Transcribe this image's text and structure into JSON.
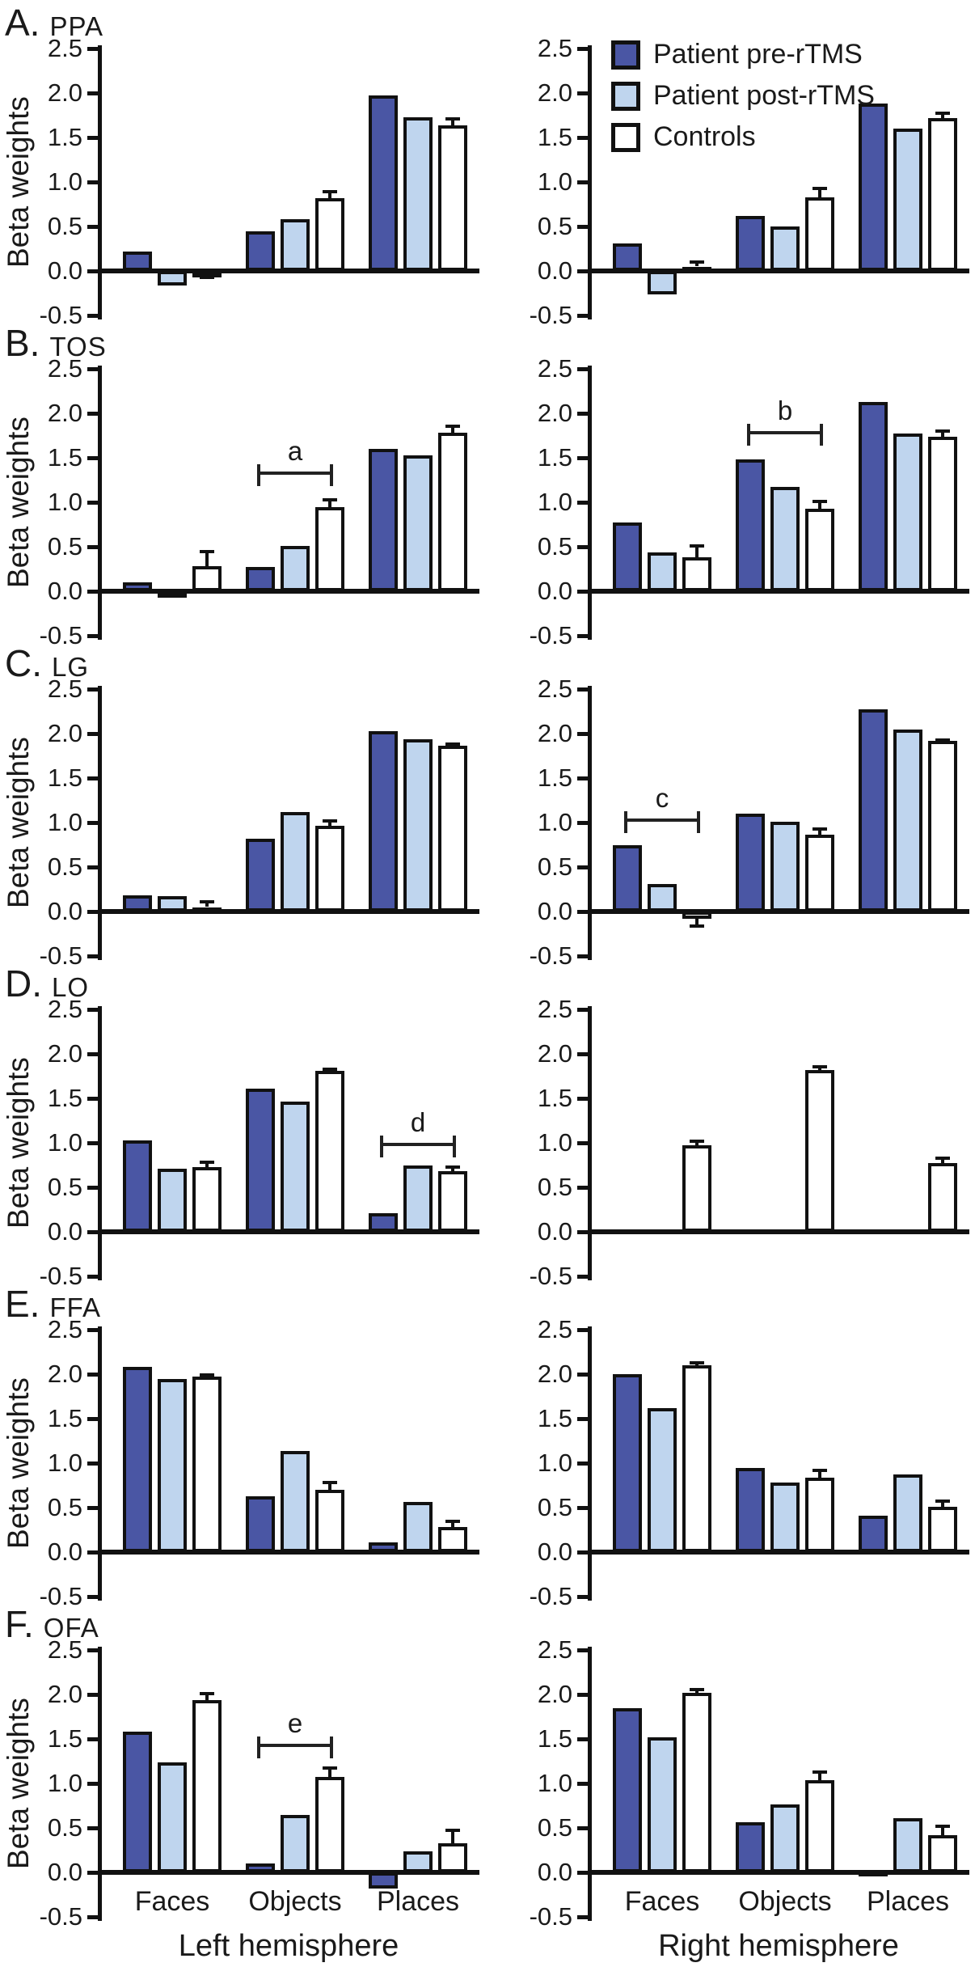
{
  "chart_data": {
    "type": "bar",
    "ylabel": "Beta weights",
    "ylim": [
      -0.5,
      2.5
    ],
    "yticks": [
      2.5,
      2.0,
      1.5,
      1.0,
      0.5,
      0.0,
      -0.5
    ],
    "categories": [
      "Faces",
      "Objects",
      "Places"
    ],
    "hemisphere_labels": {
      "left": "Left hemisphere",
      "right": "Right hemisphere"
    },
    "series_names": [
      "Patient pre-rTMS",
      "Patient post-rTMS",
      "Controls"
    ],
    "legend": [
      {
        "label": "Patient pre-rTMS",
        "color": "#4A56A4"
      },
      {
        "label": "Patient post-rTMS",
        "color": "#BFD5EE"
      },
      {
        "label": "Controls",
        "color": "#FFFFFF"
      }
    ],
    "grid": false,
    "legend_position": "top-right",
    "panels": [
      {
        "label": "A.",
        "region": "PPA",
        "left": {
          "pre": [
            0.22,
            0.45,
            1.97
          ],
          "post": [
            -0.16,
            0.58,
            1.73
          ],
          "controls": [
            -0.02,
            0.82,
            1.64
          ],
          "controls_err": [
            0.07,
            0.09,
            0.09
          ]
        },
        "right": {
          "pre": [
            0.31,
            0.62,
            1.88
          ],
          "post": [
            -0.26,
            0.5,
            1.6
          ],
          "controls": [
            0.05,
            0.83,
            1.72
          ],
          "controls_err": [
            0.07,
            0.12,
            0.07
          ]
        },
        "brackets": []
      },
      {
        "label": "B.",
        "region": "TOS",
        "left": {
          "pre": [
            0.1,
            0.27,
            1.6
          ],
          "post": [
            -0.07,
            0.51,
            1.53
          ],
          "controls": [
            0.28,
            0.95,
            1.78
          ],
          "controls_err": [
            0.18,
            0.1,
            0.09
          ]
        },
        "right": {
          "pre": [
            0.77,
            1.48,
            2.13
          ],
          "post": [
            0.44,
            1.17,
            1.77
          ],
          "controls": [
            0.38,
            0.93,
            1.74
          ],
          "controls_err": [
            0.15,
            0.1,
            0.08
          ]
        },
        "brackets": [
          {
            "chart": "left",
            "category_index": 1,
            "label": "a",
            "y": 1.35
          },
          {
            "chart": "right",
            "category_index": 1,
            "label": "b",
            "y": 1.8
          }
        ]
      },
      {
        "label": "C.",
        "region": "LG",
        "left": {
          "pre": [
            0.18,
            0.82,
            2.03
          ],
          "post": [
            0.17,
            1.12,
            1.94
          ],
          "controls": [
            0.05,
            0.96,
            1.86
          ],
          "controls_err": [
            0.08,
            0.08,
            0.04
          ]
        },
        "right": {
          "pre": [
            0.75,
            1.1,
            2.27
          ],
          "post": [
            0.31,
            1.01,
            2.05
          ],
          "controls": [
            -0.08,
            0.86,
            1.92
          ],
          "controls_err": [
            0.1,
            0.09,
            0.03
          ]
        },
        "brackets": [
          {
            "chart": "right",
            "category_index": 0,
            "label": "c",
            "y": 1.05
          }
        ]
      },
      {
        "label": "D.",
        "region": "LO",
        "left": {
          "pre": [
            1.03,
            1.61,
            0.21
          ],
          "post": [
            0.71,
            1.46,
            0.75
          ],
          "controls": [
            0.73,
            1.81,
            0.68
          ],
          "controls_err": [
            0.07,
            0.04,
            0.07
          ]
        },
        "right": {
          "pre": [
            null,
            null,
            null
          ],
          "post": [
            null,
            null,
            null
          ],
          "controls": [
            0.97,
            1.82,
            0.77
          ],
          "controls_err": [
            0.07,
            0.05,
            0.08
          ]
        },
        "brackets": [
          {
            "chart": "left",
            "category_index": 2,
            "label": "d",
            "y": 1.0
          }
        ]
      },
      {
        "label": "E.",
        "region": "FFA",
        "left": {
          "pre": [
            2.08,
            0.63,
            0.11
          ],
          "post": [
            1.95,
            1.14,
            0.56
          ],
          "controls": [
            1.97,
            0.7,
            0.28
          ],
          "controls_err": [
            0.04,
            0.1,
            0.08
          ]
        },
        "right": {
          "pre": [
            2.0,
            0.95,
            0.41
          ],
          "post": [
            1.62,
            0.78,
            0.87
          ],
          "controls": [
            2.1,
            0.84,
            0.51
          ],
          "controls_err": [
            0.05,
            0.1,
            0.08
          ]
        },
        "brackets": []
      },
      {
        "label": "F.",
        "region": "OFA",
        "left": {
          "pre": [
            1.58,
            0.1,
            -0.18
          ],
          "post": [
            1.24,
            0.65,
            0.24
          ],
          "controls": [
            1.94,
            1.07,
            0.33
          ],
          "controls_err": [
            0.09,
            0.12,
            0.16
          ]
        },
        "right": {
          "pre": [
            1.85,
            0.56,
            0.02
          ],
          "post": [
            1.52,
            0.76,
            0.61
          ],
          "controls": [
            2.02,
            1.04,
            0.42
          ],
          "controls_err": [
            0.05,
            0.11,
            0.12
          ]
        },
        "brackets": [
          {
            "chart": "left",
            "category_index": 1,
            "label": "e",
            "y": 1.45
          }
        ]
      }
    ]
  }
}
